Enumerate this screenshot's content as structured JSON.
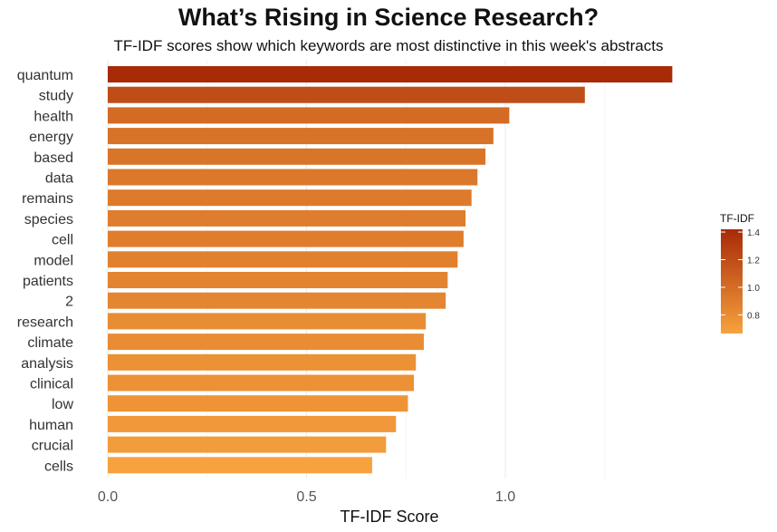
{
  "chart_data": {
    "type": "bar",
    "orientation": "horizontal",
    "title": "What’s Rising in Science Research?",
    "subtitle": "TF-IDF scores show which keywords are most distinctive in this week's abstracts",
    "xlabel": "TF-IDF Score",
    "ylabel": "",
    "xlim": [
      0,
      1.45
    ],
    "xticks": [
      "0.0",
      "0.5",
      "1.0"
    ],
    "xtick_values": [
      0,
      0.5,
      1.0
    ],
    "grid": "vertical major gridlines",
    "categories": [
      "quantum",
      "study",
      "health",
      "energy",
      "based",
      "data",
      "remains",
      "species",
      "cell",
      "model",
      "patients",
      "2",
      "research",
      "climate",
      "analysis",
      "clinical",
      "low",
      "human",
      "crucial",
      "cells"
    ],
    "values": [
      1.42,
      1.2,
      1.01,
      0.97,
      0.95,
      0.93,
      0.915,
      0.9,
      0.895,
      0.88,
      0.855,
      0.85,
      0.8,
      0.795,
      0.775,
      0.77,
      0.755,
      0.725,
      0.7,
      0.665
    ],
    "legend": {
      "title": "TF-IDF",
      "position": "right",
      "ticks": [
        "1.4",
        "1.2",
        "1.0",
        "0.8"
      ],
      "tick_values": [
        1.4,
        1.2,
        1.0,
        0.8
      ],
      "range": [
        0.665,
        1.42
      ],
      "color_low": "#f7a23e",
      "color_high": "#a82a07"
    }
  }
}
